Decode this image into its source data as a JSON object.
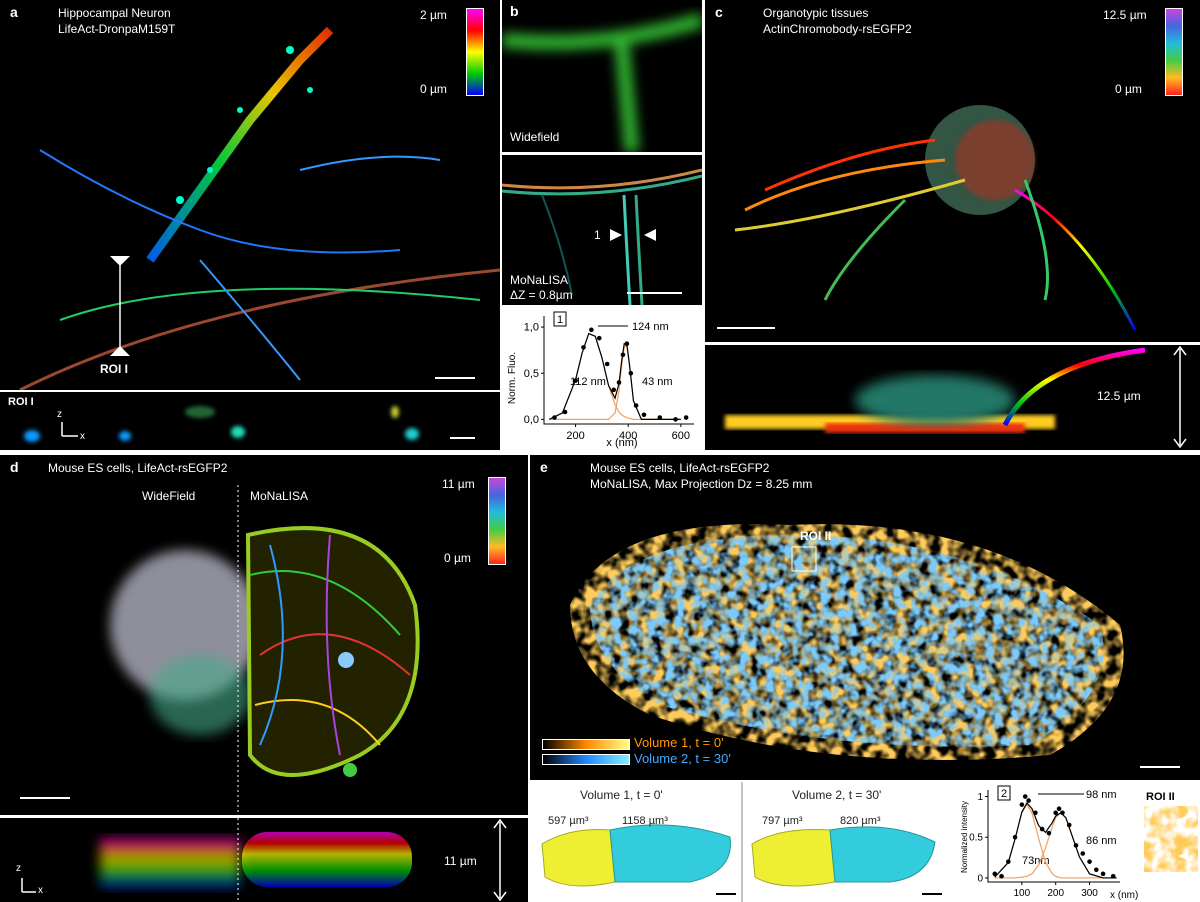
{
  "figure": {
    "a": {
      "letter": "a",
      "title": [
        "Hippocampal Neuron",
        "LifeAct-DronpaM159T"
      ],
      "bar_top": "2 µm",
      "bar_bottom": "0 µm",
      "roi": "ROI I",
      "strip_label": "ROI I",
      "z": "z",
      "x": "x"
    },
    "b": {
      "letter": "b",
      "widefield": "Widefield",
      "marker": "1",
      "monalisa": [
        "MoNaLISA",
        "ΔZ = 0.8µm"
      ]
    },
    "c": {
      "letter": "c",
      "title": [
        "Organotypic tissues",
        "ActinChromobody-rsEGFP2"
      ],
      "bar_top": "12.5 µm",
      "bar_bottom": "0 µm",
      "depth": "12.5 µm"
    },
    "d": {
      "letter": "d",
      "title": "Mouse ES cells,  LifeAct-rsEGFP2",
      "left": "WideField",
      "right": "MoNaLISA",
      "bar_top": "11 µm",
      "bar_bottom": "0 µm",
      "depth": "11 µm",
      "z": "z",
      "x": "x"
    },
    "e": {
      "letter": "e",
      "title": [
        "Mouse ES cells,  LifeAct-rsEGFP2",
        "MoNaLISA, Max Projection Dz = 8.25 mm"
      ],
      "roi": "ROI II",
      "legend": [
        "Volume 1, t = 0'",
        "Volume 2, t = 30'"
      ],
      "volumes": [
        {
          "title": "Volume 1, t = 0'",
          "left": "597 µm³",
          "right": "1158 µm³"
        },
        {
          "title": "Volume 2, t = 30'",
          "left": "797 µm³",
          "right": "820 µm³"
        }
      ],
      "roi_inset": "ROI II",
      "roi_marker": "2"
    }
  },
  "chart_data": [
    {
      "type": "line",
      "box": "1",
      "ylabel": "Norm. Fluo.",
      "xlabel": "x (nm)",
      "annotations": [
        "124 nm",
        "112 nm",
        "43 nm"
      ],
      "xlim": [
        80,
        650
      ],
      "ylim": [
        -0.05,
        1.12
      ],
      "xticks": [
        200,
        400,
        600
      ],
      "yticks": [
        {
          "value": 0,
          "label": "0,0"
        },
        {
          "value": 0.5,
          "label": "0,5"
        },
        {
          "value": 1,
          "label": "1,0"
        }
      ],
      "x": [
        100,
        150,
        200,
        225,
        250,
        275,
        300,
        325,
        350,
        365,
        375,
        385,
        395,
        405,
        420,
        450,
        500,
        600
      ],
      "series": [
        {
          "color": "#f0a060",
          "values": [
            0,
            0.07,
            0.43,
            0.72,
            0.93,
            0.9,
            0.67,
            0.37,
            0.16,
            0.08,
            0.05,
            0.03,
            0.02,
            0.01,
            0,
            0,
            0,
            0
          ]
        },
        {
          "color": "#f0a060",
          "values": [
            0,
            0,
            0,
            0,
            0,
            0,
            0,
            0,
            0.07,
            0.31,
            0.58,
            0.79,
            0.79,
            0.58,
            0.2,
            0,
            0,
            0
          ]
        },
        {
          "color": "#000000",
          "values": [
            0,
            0.07,
            0.43,
            0.72,
            0.93,
            0.9,
            0.67,
            0.37,
            0.23,
            0.39,
            0.63,
            0.82,
            0.81,
            0.59,
            0.2,
            0,
            0,
            0
          ]
        }
      ],
      "points": {
        "x": [
          120,
          160,
          200,
          230,
          260,
          290,
          320,
          345,
          365,
          380,
          395,
          410,
          430,
          460,
          520,
          580,
          620
        ],
        "y": [
          0.02,
          0.08,
          0.42,
          0.78,
          0.97,
          0.88,
          0.6,
          0.32,
          0.4,
          0.7,
          0.82,
          0.5,
          0.15,
          0.05,
          0.02,
          0,
          0.02
        ]
      }
    },
    {
      "type": "line",
      "box": "2",
      "ylabel": "Normalized intensity",
      "xlabel": "x (nm)",
      "annotations": [
        "98 nm",
        "86 nm",
        "73nm"
      ],
      "xlim": [
        0,
        390
      ],
      "ylim": [
        -0.05,
        1.08
      ],
      "xticks": [
        100,
        200,
        300
      ],
      "yticks": [
        0,
        0.5,
        1
      ],
      "x": [
        20,
        60,
        80,
        100,
        115,
        130,
        150,
        170,
        190,
        200,
        215,
        230,
        250,
        270,
        300,
        340,
        380
      ],
      "series": [
        {
          "color": "#f0a060",
          "values": [
            0.01,
            0.19,
            0.48,
            0.8,
            0.9,
            0.8,
            0.48,
            0.19,
            0.05,
            0.02,
            0,
            0,
            0,
            0,
            0,
            0,
            0
          ]
        },
        {
          "color": "#f0a060",
          "values": [
            0,
            0,
            0,
            0.01,
            0.02,
            0.05,
            0.16,
            0.37,
            0.63,
            0.74,
            0.8,
            0.74,
            0.5,
            0.26,
            0.05,
            0,
            0
          ]
        },
        {
          "color": "#000000",
          "values": [
            0.01,
            0.19,
            0.48,
            0.81,
            0.92,
            0.85,
            0.64,
            0.56,
            0.68,
            0.76,
            0.8,
            0.74,
            0.5,
            0.26,
            0.05,
            0,
            0
          ]
        }
      ],
      "points": {
        "x": [
          20,
          40,
          60,
          80,
          100,
          110,
          120,
          140,
          160,
          180,
          200,
          210,
          220,
          240,
          260,
          280,
          300,
          320,
          340,
          370
        ],
        "y": [
          0.05,
          0.02,
          0.2,
          0.5,
          0.9,
          1,
          0.95,
          0.8,
          0.6,
          0.55,
          0.8,
          0.85,
          0.8,
          0.65,
          0.4,
          0.3,
          0.2,
          0.1,
          0.05,
          0.02
        ]
      }
    }
  ]
}
